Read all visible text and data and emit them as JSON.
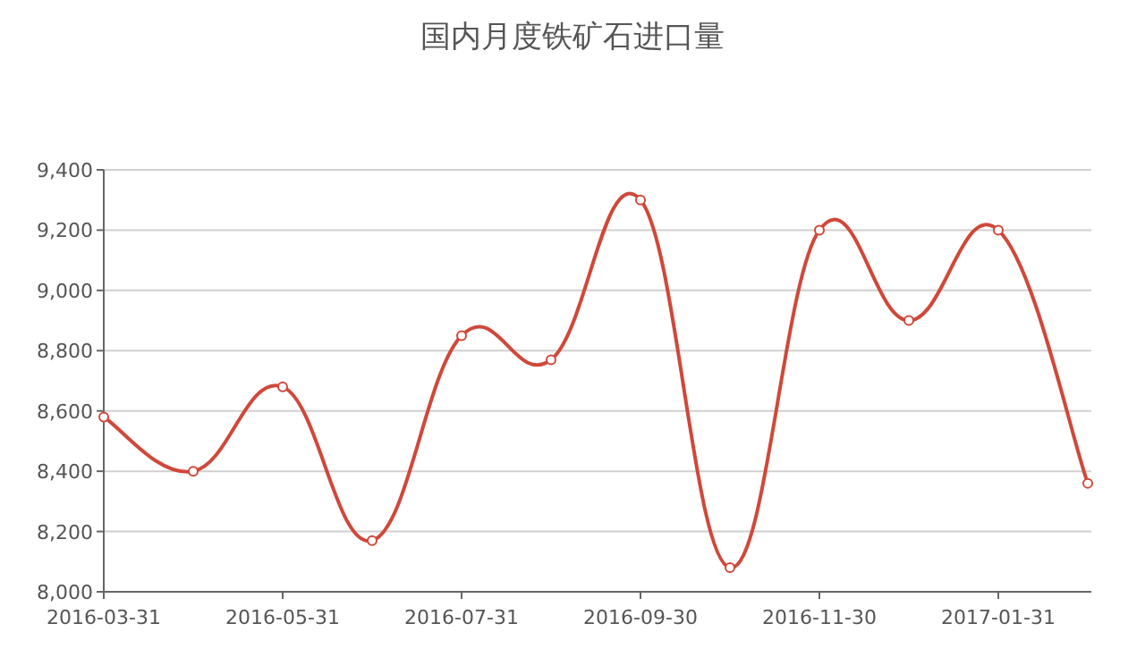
{
  "chart_data": {
    "type": "line",
    "title": "国内月度铁矿石进口量",
    "categories": [
      "2016-03-31",
      null,
      "2016-05-31",
      null,
      "2016-07-31",
      null,
      "2016-09-30",
      null,
      "2016-11-30",
      null,
      "2017-01-31",
      null
    ],
    "series": [
      {
        "color": "#d0483a",
        "values": [
          8580,
          8400,
          8680,
          8170,
          8850,
          8770,
          9300,
          8080,
          9200,
          8900,
          9200,
          8360
        ]
      }
    ],
    "ylim": [
      8000,
      9400
    ],
    "yticks": [
      {
        "value": 8000,
        "label": "8,000"
      },
      {
        "value": 8200,
        "label": "8,200"
      },
      {
        "value": 8400,
        "label": "8,400"
      },
      {
        "value": 8600,
        "label": "8,600"
      },
      {
        "value": 8800,
        "label": "8,800"
      },
      {
        "value": 9000,
        "label": "9,000"
      },
      {
        "value": 9200,
        "label": "9,200"
      },
      {
        "value": 9400,
        "label": "9,400"
      }
    ],
    "grid": "y",
    "marker": "circle",
    "line_style": "solid"
  }
}
